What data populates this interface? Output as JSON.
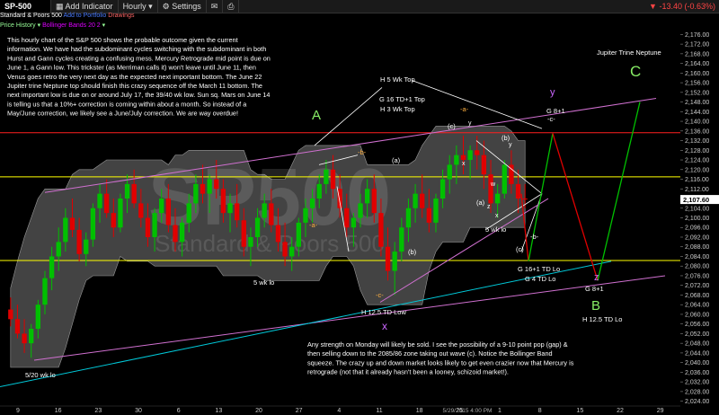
{
  "toolbar": {
    "symbol": "SP-500",
    "add_indicator": "Add Indicator",
    "interval": "Hourly",
    "settings": "Settings",
    "change": "-13.40 (-0.63%)"
  },
  "subheader": {
    "name": "Standard & Poors 500",
    "add_portfolio": "Add to Portfolio",
    "drawings": "Drawings",
    "price_history": "Price History",
    "bollinger": "Bollinger Bands 20 2"
  },
  "chart_data": {
    "type": "candlestick",
    "watermark_main": "SP500",
    "watermark_sub": "Standard & Poors 500",
    "y_ticks": [
      2024,
      2028,
      2032,
      2036,
      2040,
      2044,
      2048,
      2052,
      2056,
      2060,
      2064,
      2068,
      2072,
      2076,
      2080,
      2084,
      2088,
      2092,
      2096,
      2100,
      2104,
      2108,
      2112,
      2116,
      2120,
      2124,
      2128,
      2132,
      2136,
      2140,
      2144,
      2148,
      2152,
      2156,
      2160,
      2164,
      2168,
      2172,
      2176
    ],
    "y_tick_labels": [
      "2,024.00",
      "2,028.00",
      "2,032.00",
      "2,036.00",
      "2,040.00",
      "2,044.00",
      "2,048.00",
      "2,052.00",
      "2,056.00",
      "2,060.00",
      "2,064.00",
      "2,068.00",
      "2,072.00",
      "2,076.00",
      "2,080.00",
      "2,084.00",
      "2,088.00",
      "2,092.00",
      "2,096.00",
      "2,100.00",
      "2,104.00",
      "2,108.00",
      "2,112.00",
      "2,116.00",
      "2,120.00",
      "2,124.00",
      "2,128.00",
      "2,132.00",
      "2,136.00",
      "2,140.00",
      "2,144.00",
      "2,148.00",
      "2,152.00",
      "2,156.00",
      "2,160.00",
      "2,164.00",
      "2,168.00",
      "2,172.00",
      "2,176.00"
    ],
    "ylim": [
      2022,
      2178
    ],
    "last_price": "2,107.60",
    "last_value": 2107.6,
    "x_ticks": [
      "9",
      "16",
      "23",
      "30",
      "6",
      "13",
      "20",
      "27",
      "4",
      "11",
      "18",
      "25",
      "1",
      "8",
      "15",
      "22",
      "29"
    ],
    "x_tick_date": "5/29/2015 4:00 PM",
    "bars": [
      [
        2062,
        2067,
        2055,
        2058
      ],
      [
        2058,
        2064,
        2050,
        2052
      ],
      [
        2052,
        2058,
        2044,
        2048
      ],
      [
        2048,
        2056,
        2042,
        2054
      ],
      [
        2054,
        2066,
        2050,
        2064
      ],
      [
        2064,
        2078,
        2060,
        2075
      ],
      [
        2075,
        2088,
        2070,
        2084
      ],
      [
        2084,
        2096,
        2078,
        2090
      ],
      [
        2090,
        2104,
        2086,
        2100
      ],
      [
        2100,
        2108,
        2092,
        2095
      ],
      [
        2095,
        2100,
        2082,
        2085
      ],
      [
        2085,
        2094,
        2080,
        2091
      ],
      [
        2091,
        2106,
        2088,
        2104
      ],
      [
        2104,
        2114,
        2098,
        2110
      ],
      [
        2110,
        2116,
        2100,
        2102
      ],
      [
        2102,
        2108,
        2092,
        2096
      ],
      [
        2096,
        2110,
        2094,
        2108
      ],
      [
        2108,
        2118,
        2102,
        2114
      ],
      [
        2114,
        2120,
        2104,
        2106
      ],
      [
        2106,
        2112,
        2096,
        2100
      ],
      [
        2100,
        2106,
        2088,
        2092
      ],
      [
        2092,
        2104,
        2086,
        2102
      ],
      [
        2102,
        2112,
        2098,
        2108
      ],
      [
        2108,
        2114,
        2094,
        2097
      ],
      [
        2097,
        2104,
        2086,
        2090
      ],
      [
        2090,
        2100,
        2084,
        2098
      ],
      [
        2098,
        2110,
        2094,
        2106
      ],
      [
        2106,
        2118,
        2102,
        2114
      ],
      [
        2114,
        2122,
        2106,
        2110
      ],
      [
        2110,
        2118,
        2102,
        2116
      ],
      [
        2116,
        2124,
        2108,
        2112
      ],
      [
        2112,
        2116,
        2098,
        2102
      ],
      [
        2102,
        2110,
        2094,
        2106
      ],
      [
        2106,
        2114,
        2096,
        2099
      ],
      [
        2099,
        2104,
        2084,
        2088
      ],
      [
        2088,
        2096,
        2080,
        2092
      ],
      [
        2092,
        2104,
        2088,
        2100
      ],
      [
        2100,
        2110,
        2096,
        2106
      ],
      [
        2106,
        2112,
        2094,
        2097
      ],
      [
        2097,
        2104,
        2086,
        2090
      ],
      [
        2090,
        2098,
        2080,
        2084
      ],
      [
        2084,
        2092,
        2078,
        2088
      ],
      [
        2088,
        2100,
        2084,
        2098
      ],
      [
        2098,
        2108,
        2092,
        2104
      ],
      [
        2104,
        2112,
        2098,
        2108
      ],
      [
        2108,
        2118,
        2104,
        2114
      ],
      [
        2114,
        2124,
        2110,
        2120
      ],
      [
        2120,
        2126,
        2108,
        2112
      ],
      [
        2112,
        2118,
        2100,
        2104
      ],
      [
        2104,
        2110,
        2092,
        2096
      ],
      [
        2096,
        2102,
        2088,
        2100
      ],
      [
        2100,
        2110,
        2096,
        2106
      ],
      [
        2106,
        2116,
        2100,
        2112
      ],
      [
        2112,
        2118,
        2098,
        2102
      ],
      [
        2102,
        2108,
        2084,
        2088
      ],
      [
        2088,
        2096,
        2074,
        2078
      ],
      [
        2078,
        2090,
        2068,
        2086
      ],
      [
        2086,
        2100,
        2082,
        2096
      ],
      [
        2096,
        2108,
        2090,
        2104
      ],
      [
        2104,
        2114,
        2098,
        2110
      ],
      [
        2110,
        2118,
        2100,
        2104
      ],
      [
        2104,
        2112,
        2094,
        2098
      ],
      [
        2098,
        2110,
        2094,
        2108
      ],
      [
        2108,
        2120,
        2104,
        2116
      ],
      [
        2116,
        2126,
        2110,
        2122
      ],
      [
        2122,
        2130,
        2114,
        2126
      ],
      [
        2126,
        2134,
        2118,
        2124
      ],
      [
        2124,
        2130,
        2116,
        2128
      ],
      [
        2128,
        2134,
        2120,
        2126
      ],
      [
        2126,
        2132,
        2112,
        2118
      ],
      [
        2118,
        2124,
        2102,
        2106
      ],
      [
        2106,
        2114,
        2100,
        2110
      ],
      [
        2110,
        2124,
        2108,
        2122
      ],
      [
        2122,
        2128,
        2110,
        2114
      ],
      [
        2114,
        2120,
        2102,
        2108
      ],
      [
        2108,
        2114,
        2104,
        2107.6
      ]
    ],
    "series_label": "Price History",
    "bollinger_label": "Bollinger Bands 20 2"
  },
  "annotations": {
    "commentary_top": [
      "This hourly chart of the S&P 500 shows the probable outcome given the current",
      "information. We have had the subdominant cycles switching with the subdominant in both",
      "Hurst and Gann cycles creating a confusing mess.  Mercury Retrograde mid point is due on",
      "June 1, a Gann low.  This trickster (as Merriman calls it) won't leave until June 11, then",
      "Venus goes retro the very next day as the expected next important bottom.  The June 22",
      "Jupiter trine Neptune top should finish this crazy sequence off the March 11 bottom.  The",
      "next important low is due on or around July 17, the 39/40 wk low.  Sun sq. Mars on June 14",
      "is telling us that a 10%+ correction is coming within about a month.  So instead of a",
      "May/June correction, we likely see a June/July correction.  We are way overdue!"
    ],
    "commentary_bottom": [
      "Any strength on Monday will likely be sold.  I see the possibility of a 9-10 point pop (gap) &",
      "then selling down to the 2085/86 zone taking out wave (c).  Notice the Bollinger Band",
      "squeeze.  The crazy up and down market looks likely to get even crazier now that Mercury is",
      "retrograde (not that it already hasn't been a looney, schizoid market!)."
    ],
    "jupiter": "Jupiter Trine Neptune",
    "big_A": "A",
    "big_B": "B",
    "big_C": "C",
    "x_mark": "x",
    "y_mark": "y",
    "z_mark": "z",
    "h5": "H 5 Wk Top",
    "g16top": "G 16 TD+1 Top",
    "h3": "H 3 Wk Top",
    "wk5lo_left": "5 wk lo",
    "wk5lo_right": "5 wk lo",
    "wk520": "5/20 wk lo",
    "h125_low": "H 12.5 TD Low",
    "h125_lo_right": "H 12.5 TD Lo",
    "g16lo": "G 16+1 TD Lo",
    "g4lo": "G 4 TD Lo",
    "g8_top": "G 8+1",
    "g8_bot": "G 8+1",
    "c_top": "-c-",
    "c_left": "-c-",
    "a_mid": "-a-",
    "a_left": "-a-",
    "b_left": "-b-",
    "b_right": "-b-",
    "w_a": "(a)",
    "w_b": "(b)",
    "w_c": "(c)",
    "w_c2": "(c)",
    "w_a2": "(a)",
    "w_b2": "(b)",
    "w_y": "y",
    "w_y2": "y",
    "w_x": "x",
    "w_x2": "x",
    "w_w": "w",
    "w_z": "z"
  },
  "colors": {
    "up": "#00c000",
    "down": "#e00000",
    "band": "#7a7a7a",
    "magenta": "#d070d0",
    "green_ann": "#88ee66",
    "purple_ann": "#cc66ff",
    "orange_ann": "#ffb040",
    "yellow_line": "#ffff00",
    "red_line": "#ff2020",
    "cyan_line": "#00c8d8"
  }
}
